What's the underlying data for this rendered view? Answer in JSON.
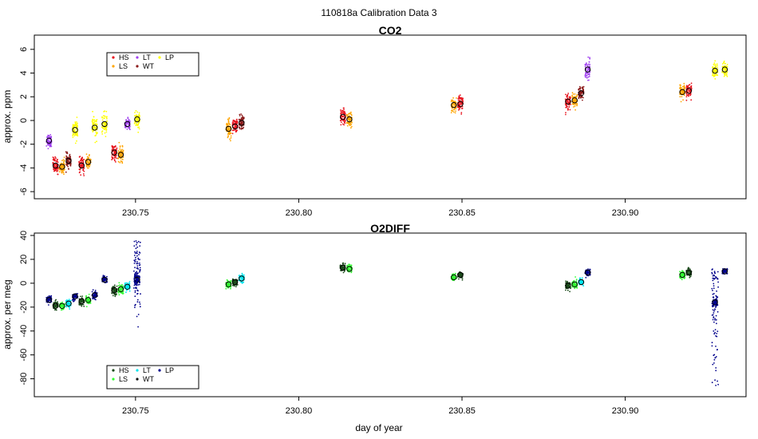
{
  "page": {
    "title": "110818a   Calibration Data 3"
  },
  "colors": {
    "HS": "#e8141e",
    "LS": "#ffa500",
    "LT": "#a040f0",
    "WT": "#8b1a1a",
    "LP": "#ffff00",
    "O2_HS": "#1a4a1a",
    "O2_LS": "#33ff33",
    "O2_LT": "#00e5ee",
    "O2_WT": "#111111",
    "O2_LP": "#00008b"
  },
  "x_axis": {
    "label": "day of year",
    "ticks": [
      "230.75",
      "230.80",
      "230.85",
      "230.90"
    ],
    "tick_values": [
      230.75,
      230.8,
      230.85,
      230.9
    ],
    "range": [
      230.719,
      230.937
    ]
  },
  "chart_data": [
    {
      "type": "scatter",
      "title": "CO2",
      "ylabel": "approx. ppm",
      "ylim": [
        -6.6,
        7.2
      ],
      "yticks": [
        "-6",
        "-4",
        "-2",
        "0",
        "2",
        "4",
        "6"
      ],
      "ytick_values": [
        -6,
        -4,
        -2,
        0,
        2,
        4,
        6
      ],
      "legend": {
        "placement": "top-left",
        "entries": [
          "HS",
          "LS",
          "LT",
          "WT",
          "LP"
        ]
      },
      "clusters": [
        {
          "series": "LT",
          "x": 230.7235,
          "y": -1.7,
          "spread": 0.5
        },
        {
          "series": "HS",
          "x": 230.7255,
          "y": -3.8,
          "spread": 0.6
        },
        {
          "series": "LS",
          "x": 230.7275,
          "y": -3.9,
          "spread": 0.5
        },
        {
          "series": "WT",
          "x": 230.7295,
          "y": -3.4,
          "spread": 0.5
        },
        {
          "series": "LP",
          "x": 230.7315,
          "y": -0.8,
          "spread": 0.7
        },
        {
          "series": "HS",
          "x": 230.7335,
          "y": -3.8,
          "spread": 0.6
        },
        {
          "series": "LS",
          "x": 230.7355,
          "y": -3.5,
          "spread": 0.5
        },
        {
          "series": "LP",
          "x": 230.7375,
          "y": -0.6,
          "spread": 0.8
        },
        {
          "series": "LP",
          "x": 230.7405,
          "y": -0.3,
          "spread": 0.8
        },
        {
          "series": "HS",
          "x": 230.7435,
          "y": -2.7,
          "spread": 0.6
        },
        {
          "series": "LS",
          "x": 230.7455,
          "y": -2.9,
          "spread": 0.6
        },
        {
          "series": "LT",
          "x": 230.7475,
          "y": -0.3,
          "spread": 0.4
        },
        {
          "series": "LP",
          "x": 230.7505,
          "y": 0.1,
          "spread": 0.7
        },
        {
          "series": "LS",
          "x": 230.7785,
          "y": -0.7,
          "spread": 0.7
        },
        {
          "series": "HS",
          "x": 230.7805,
          "y": -0.5,
          "spread": 0.6
        },
        {
          "series": "WT",
          "x": 230.7825,
          "y": -0.2,
          "spread": 0.6
        },
        {
          "series": "HS",
          "x": 230.8135,
          "y": 0.3,
          "spread": 0.6
        },
        {
          "series": "LS",
          "x": 230.8155,
          "y": 0.1,
          "spread": 0.5
        },
        {
          "series": "LS",
          "x": 230.8475,
          "y": 1.3,
          "spread": 0.5
        },
        {
          "series": "HS",
          "x": 230.8495,
          "y": 1.4,
          "spread": 0.6
        },
        {
          "series": "HS",
          "x": 230.8825,
          "y": 1.6,
          "spread": 0.6
        },
        {
          "series": "LS",
          "x": 230.8845,
          "y": 1.7,
          "spread": 0.5
        },
        {
          "series": "WT",
          "x": 230.8865,
          "y": 2.3,
          "spread": 0.5
        },
        {
          "series": "LT",
          "x": 230.8885,
          "y": 4.3,
          "spread": 0.7
        },
        {
          "series": "LS",
          "x": 230.9175,
          "y": 2.4,
          "spread": 0.6
        },
        {
          "series": "HS",
          "x": 230.9195,
          "y": 2.5,
          "spread": 0.6
        },
        {
          "series": "LP",
          "x": 230.9275,
          "y": 4.2,
          "spread": 0.6
        },
        {
          "series": "LP",
          "x": 230.9305,
          "y": 4.3,
          "spread": 0.6
        }
      ]
    },
    {
      "type": "scatter",
      "title": "O2DIFF",
      "ylabel": "approx. per meg",
      "ylim": [
        -95,
        42
      ],
      "yticks": [
        "-80",
        "-60",
        "-40",
        "-20",
        "0",
        "20",
        "40"
      ],
      "ytick_values": [
        -80,
        -60,
        -40,
        -20,
        0,
        20,
        40
      ],
      "legend": {
        "placement": "bottom-left",
        "entries": [
          "HS",
          "LS",
          "LT",
          "WT",
          "LP"
        ]
      },
      "clusters": [
        {
          "series": "LP",
          "x": 230.7235,
          "y": -14,
          "spread": 2.5
        },
        {
          "series": "HS",
          "x": 230.7255,
          "y": -19,
          "spread": 3
        },
        {
          "series": "LS",
          "x": 230.7275,
          "y": -19,
          "spread": 3
        },
        {
          "series": "LT",
          "x": 230.7295,
          "y": -17,
          "spread": 2.5
        },
        {
          "series": "LP",
          "x": 230.7315,
          "y": -11,
          "spread": 3
        },
        {
          "series": "HS",
          "x": 230.7335,
          "y": -15,
          "spread": 3
        },
        {
          "series": "LS",
          "x": 230.7355,
          "y": -14,
          "spread": 3
        },
        {
          "series": "LP",
          "x": 230.7375,
          "y": -10,
          "spread": 3
        },
        {
          "series": "LP",
          "x": 230.7405,
          "y": 3,
          "spread": 3
        },
        {
          "series": "HS",
          "x": 230.7435,
          "y": -6,
          "spread": 3
        },
        {
          "series": "LS",
          "x": 230.7455,
          "y": -5,
          "spread": 4
        },
        {
          "series": "LT",
          "x": 230.7475,
          "y": -3,
          "spread": 3
        },
        {
          "series": "LP",
          "x": 230.7505,
          "y": 3,
          "spread": 5
        },
        {
          "series": "LS",
          "x": 230.7785,
          "y": -1,
          "spread": 3
        },
        {
          "series": "HS",
          "x": 230.7805,
          "y": 1,
          "spread": 3
        },
        {
          "series": "LT",
          "x": 230.7825,
          "y": 4,
          "spread": 3
        },
        {
          "series": "HS",
          "x": 230.8135,
          "y": 13,
          "spread": 3
        },
        {
          "series": "LS",
          "x": 230.8155,
          "y": 12,
          "spread": 3
        },
        {
          "series": "LS",
          "x": 230.8475,
          "y": 5,
          "spread": 2.5
        },
        {
          "series": "HS",
          "x": 230.8495,
          "y": 7,
          "spread": 2.5
        },
        {
          "series": "HS",
          "x": 230.8825,
          "y": -2,
          "spread": 3
        },
        {
          "series": "LS",
          "x": 230.8845,
          "y": -1,
          "spread": 3
        },
        {
          "series": "LT",
          "x": 230.8865,
          "y": 1,
          "spread": 2.5
        },
        {
          "series": "LP",
          "x": 230.8885,
          "y": 9,
          "spread": 2.5
        },
        {
          "series": "LS",
          "x": 230.9175,
          "y": 7,
          "spread": 3
        },
        {
          "series": "HS",
          "x": 230.9195,
          "y": 9,
          "spread": 3
        },
        {
          "series": "LP",
          "x": 230.9275,
          "y": -16,
          "spread": 4
        },
        {
          "series": "LP",
          "x": 230.9305,
          "y": 10,
          "spread": 2.5
        }
      ],
      "excursions": [
        {
          "series": "LP",
          "x_from": 230.7495,
          "x_to": 230.7515,
          "y_from": -38,
          "y_to": 36
        },
        {
          "series": "LP",
          "x_from": 230.9265,
          "x_to": 230.9285,
          "y_from": -92,
          "y_to": 12
        }
      ]
    }
  ]
}
